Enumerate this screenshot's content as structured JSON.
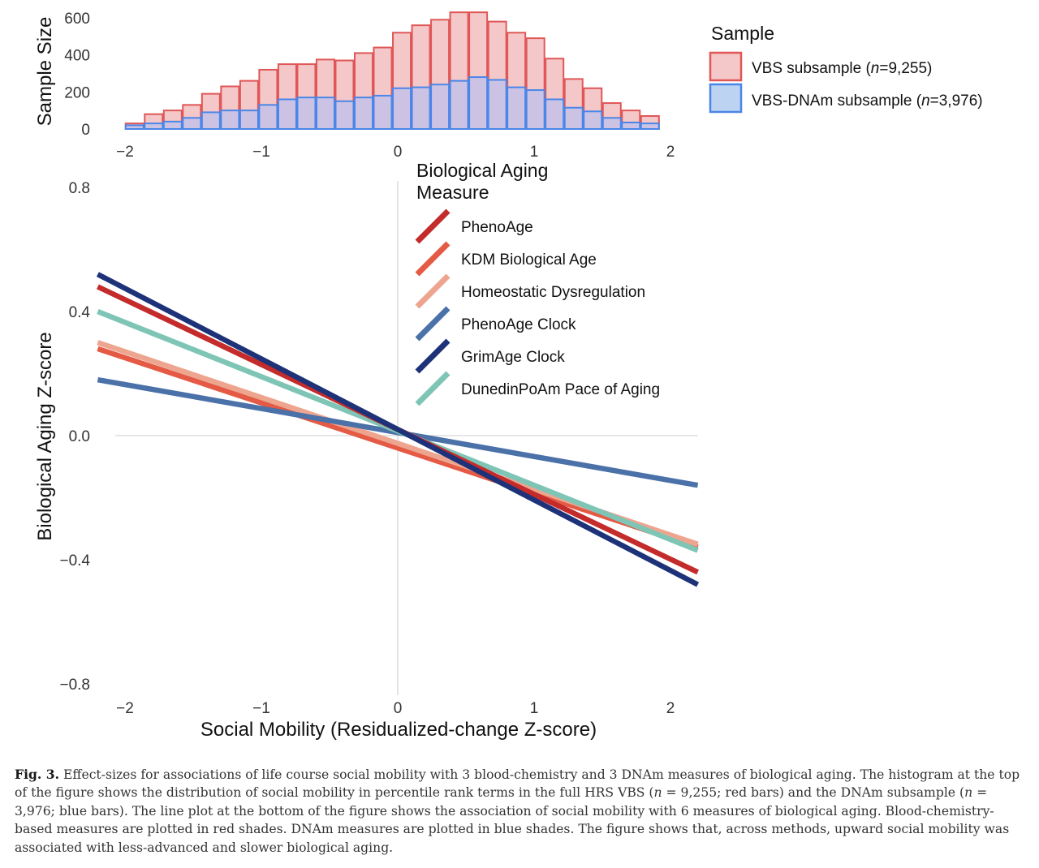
{
  "chart_data": [
    {
      "type": "bar",
      "subtype": "histogram-overlay",
      "ylabel": "Sample Size",
      "xlim": [
        -2,
        2
      ],
      "ylim": [
        0,
        620
      ],
      "yticks": [
        0,
        200,
        400,
        600
      ],
      "xticks": [
        -2,
        -1,
        0,
        1,
        2
      ],
      "xtick_labels": [
        "−2",
        "−1",
        "0",
        "1",
        "2"
      ],
      "bin_start": -2,
      "bin_width": 0.14,
      "legend": {
        "title": "Sample",
        "position": "right"
      },
      "series": [
        {
          "name": "VBS subsample (n=9,255)",
          "name_prefix": "VBS subsample (",
          "name_italic": "n",
          "name_suffix": "=9,255)",
          "fill": "#f4c7c9",
          "stroke": "#e05757",
          "values": [
            30,
            80,
            100,
            130,
            190,
            230,
            260,
            320,
            350,
            350,
            375,
            370,
            410,
            440,
            520,
            560,
            590,
            630,
            630,
            580,
            520,
            490,
            380,
            270,
            220,
            140,
            100,
            70
          ]
        },
        {
          "name": "VBS-DNAm subsample (n=3,976)",
          "name_prefix": "VBS-DNAm subsample (",
          "name_italic": "n",
          "name_suffix": "=3,976)",
          "fill": "#c9c3e6",
          "stroke": "#4a86e8",
          "values": [
            20,
            30,
            40,
            60,
            90,
            100,
            100,
            130,
            160,
            170,
            170,
            150,
            170,
            180,
            220,
            225,
            240,
            260,
            280,
            265,
            225,
            210,
            160,
            115,
            95,
            60,
            35,
            30
          ]
        }
      ]
    },
    {
      "type": "line",
      "xlabel": "Social Mobility (Residualized-change Z-score)",
      "ylabel": "Biological Aging Z-score",
      "xlim": [
        -2.2,
        2.2
      ],
      "ylim": [
        -0.8,
        0.8
      ],
      "xticks": [
        -2,
        -1,
        0,
        1,
        2
      ],
      "xtick_labels": [
        "−2",
        "−1",
        "0",
        "1",
        "2"
      ],
      "yticks": [
        0.8,
        0.4,
        0.0,
        -0.4,
        -0.8
      ],
      "ytick_labels": [
        "0.8",
        "0.4",
        "0.0",
        "−0.4",
        "−0.8"
      ],
      "legend": {
        "title_lines": [
          "Biological Aging",
          "Measure"
        ],
        "position": "top-center"
      },
      "series": [
        {
          "name": "KDM Biological Age",
          "color": "#e45a45",
          "x": [
            -2.2,
            2.2
          ],
          "y": [
            0.28,
            -0.36
          ]
        },
        {
          "name": "Homeostatic Dysregulation",
          "color": "#eea58f",
          "x": [
            -2.2,
            2.2
          ],
          "y": [
            0.3,
            -0.35
          ]
        },
        {
          "name": "PhenoAge Clock",
          "color": "#4a71a8",
          "x": [
            -2.2,
            2.2
          ],
          "y": [
            0.18,
            -0.16
          ]
        },
        {
          "name": "DunedinPoAm Pace of Aging",
          "color": "#7ec5b6",
          "x": [
            -2.2,
            2.2
          ],
          "y": [
            0.4,
            -0.37
          ]
        },
        {
          "name": "PhenoAge",
          "color": "#c42b2b",
          "x": [
            -2.2,
            2.2
          ],
          "y": [
            0.48,
            -0.44
          ]
        },
        {
          "name": "GrimAge Clock",
          "color": "#1d3278",
          "x": [
            -2.2,
            2.2
          ],
          "y": [
            0.52,
            -0.48
          ]
        }
      ],
      "legend_order": [
        "PhenoAge",
        "KDM Biological Age",
        "Homeostatic Dysregulation",
        "PhenoAge Clock",
        "GrimAge Clock",
        "DunedinPoAm Pace of Aging"
      ]
    }
  ],
  "caption": {
    "label": "Fig. 3.",
    "p1": " Effect-sizes for associations of life course social mobility with 3 blood-chemistry and 3 DNAm measures of biological aging. The histogram at the top of the figure shows the distribution of social mobility in percentile rank terms in the full HRS VBS (",
    "n1": "n",
    "p2": " = 9,255; red bars) and the DNAm subsample (",
    "n2": "n",
    "p3": " = 3,976; blue bars). The line plot at the bottom of the figure shows the association of social mobility with 6 measures of biological aging. Blood-chemistry-based measures are plotted in red shades. DNAm measures are plotted in blue shades. The figure shows that, across methods, upward social mobility was associated with less-advanced and slower biological aging."
  }
}
